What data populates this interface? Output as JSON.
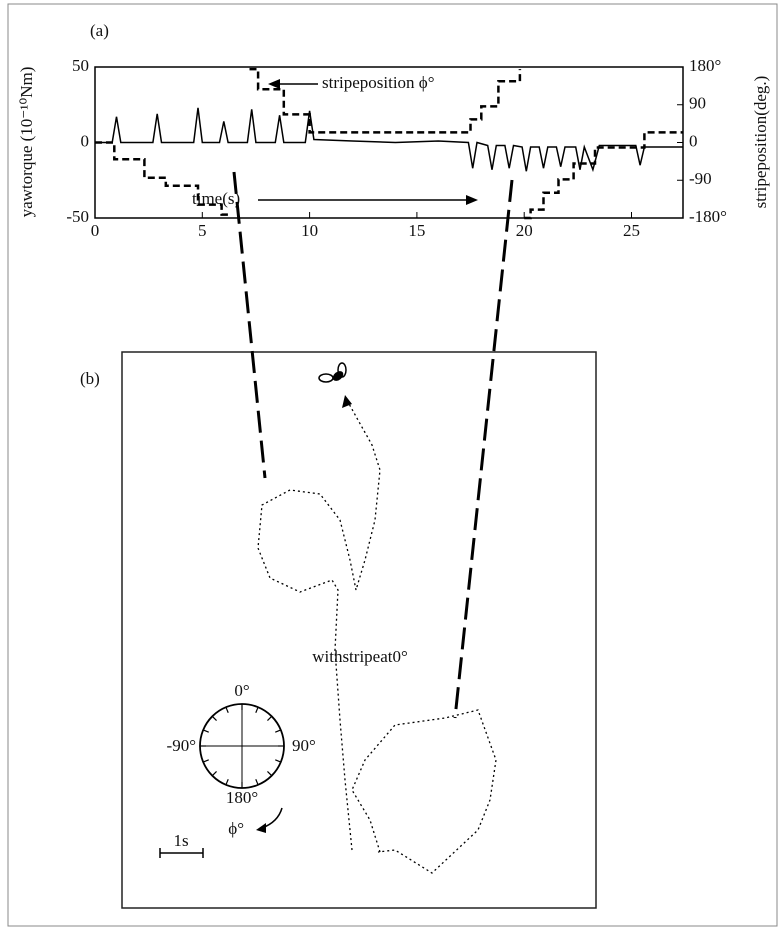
{
  "chart_data": {
    "type": "line",
    "panel_label": "(a)",
    "ylabel": "yawtorque (10⁻¹⁰Nm)",
    "y2label": "stripeposition(deg.)",
    "annotations": [
      "stripeposition ϕ°",
      "time(s)"
    ],
    "xlim": [
      0,
      27.4
    ],
    "xticks": [
      0,
      5,
      10,
      15,
      20,
      25
    ],
    "ylim": [
      -50,
      50
    ],
    "yticks": [
      -50,
      0,
      50
    ],
    "y2lim": [
      -180,
      180
    ],
    "y2ticks": [
      {
        "value": 180,
        "label": "180°"
      },
      90,
      0,
      -90,
      {
        "value": -180,
        "label": "-180°"
      }
    ],
    "x": [
      0,
      0.8,
      1.0,
      1.2,
      2.7,
      2.9,
      3.1,
      4.6,
      4.8,
      5.0,
      5.8,
      6.0,
      6.2,
      7.1,
      7.3,
      7.5,
      8.4,
      8.6,
      8.8,
      9.8,
      10.0,
      10.2,
      12,
      14,
      16,
      17.4,
      17.6,
      17.8,
      18.3,
      18.5,
      18.7,
      19.1,
      19.3,
      19.5,
      19.9,
      20.1,
      20.3,
      20.7,
      20.9,
      21.1,
      21.5,
      21.7,
      21.9,
      22.4,
      22.6,
      22.8,
      23.2,
      23.5,
      25.2,
      25.4,
      25.6,
      26,
      27.4
    ],
    "series": [
      {
        "color": "#000000",
        "dash": false,
        "values": [
          0,
          0,
          17,
          0,
          0,
          19,
          0,
          0,
          23,
          0,
          0,
          14,
          0,
          0,
          22,
          0,
          0,
          18,
          0,
          0,
          21,
          2,
          1,
          0,
          1,
          0,
          -17,
          0,
          -2,
          -18,
          -2,
          -2,
          -17,
          -2,
          -3,
          -19,
          -3,
          -3,
          -17,
          -3,
          -3,
          -16,
          -3,
          -3,
          -18,
          -3,
          -18,
          -2,
          -2,
          -15,
          -3,
          -3,
          -3
        ]
      },
      {
        "color": "#000000",
        "dash": true,
        "axis": "y2",
        "x": [
          0,
          0.9,
          0.9,
          2.3,
          2.3,
          3.3,
          3.3,
          4.8,
          4.8,
          5.9,
          5.9,
          6.3,
          6.8,
          7.2,
          7.6,
          7.6,
          8.8,
          8.8,
          10.0,
          10.0,
          17.5,
          17.5,
          18.0,
          18.0,
          18.8,
          18.8,
          19.8,
          19.8,
          20.0,
          20.0,
          20.3,
          20.3,
          20.9,
          20.9,
          21.6,
          21.6,
          22.3,
          22.3,
          23.3,
          23.3,
          25.6,
          25.6,
          27.4
        ],
        "values": [
          0,
          0,
          -40,
          -40,
          -84,
          -84,
          -103,
          -103,
          -148,
          -148,
          -172,
          -172,
          null,
          175,
          175,
          127,
          127,
          67,
          67,
          24,
          24,
          55,
          55,
          86,
          86,
          146,
          146,
          175,
          null,
          -180,
          -180,
          -160,
          -160,
          -120,
          -120,
          -88,
          -88,
          -50,
          -50,
          -12,
          -12,
          24,
          24
        ]
      }
    ]
  },
  "panel_b": {
    "panel_label": "(b)",
    "caption": "withstripeat0°",
    "compass": {
      "top": "0°",
      "left": "-90°",
      "right": "90°",
      "bottom": "180°"
    },
    "rotation_label": "ϕ°",
    "scale_label": "1s"
  }
}
